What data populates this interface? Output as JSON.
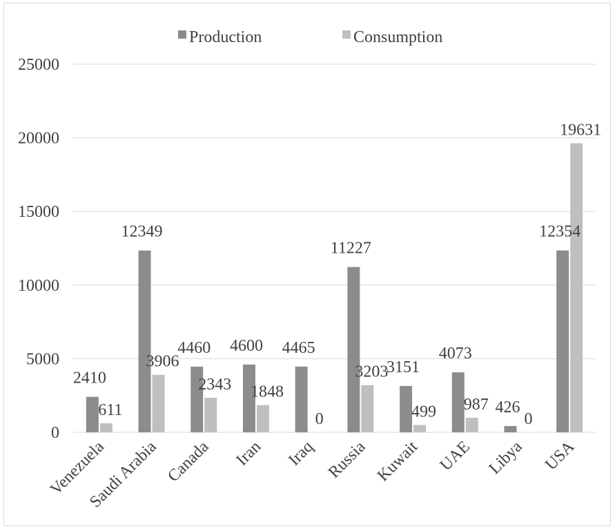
{
  "chart_data": {
    "type": "bar",
    "categories": [
      "Venezuela",
      "Saudi Arabia",
      "Canada",
      "Iran",
      "Iraq",
      "Russia",
      "Kuwait",
      "UAE",
      "Libya",
      "USA"
    ],
    "series": [
      {
        "name": "Production",
        "values": [
          2410,
          12349,
          4460,
          4600,
          4465,
          11227,
          3151,
          4073,
          426,
          12354
        ],
        "color": "#8c8c8c"
      },
      {
        "name": "Consumption",
        "values": [
          611,
          3906,
          2343,
          1848,
          0,
          3203,
          499,
          987,
          0,
          19631
        ],
        "color": "#bfbfbf"
      }
    ],
    "ylim": [
      0,
      25000
    ],
    "yticks": [
      0,
      5000,
      10000,
      15000,
      20000,
      25000
    ],
    "grid": true,
    "legend": "top-center",
    "data_labels": true,
    "xlabel": "",
    "ylabel": "",
    "title": ""
  }
}
